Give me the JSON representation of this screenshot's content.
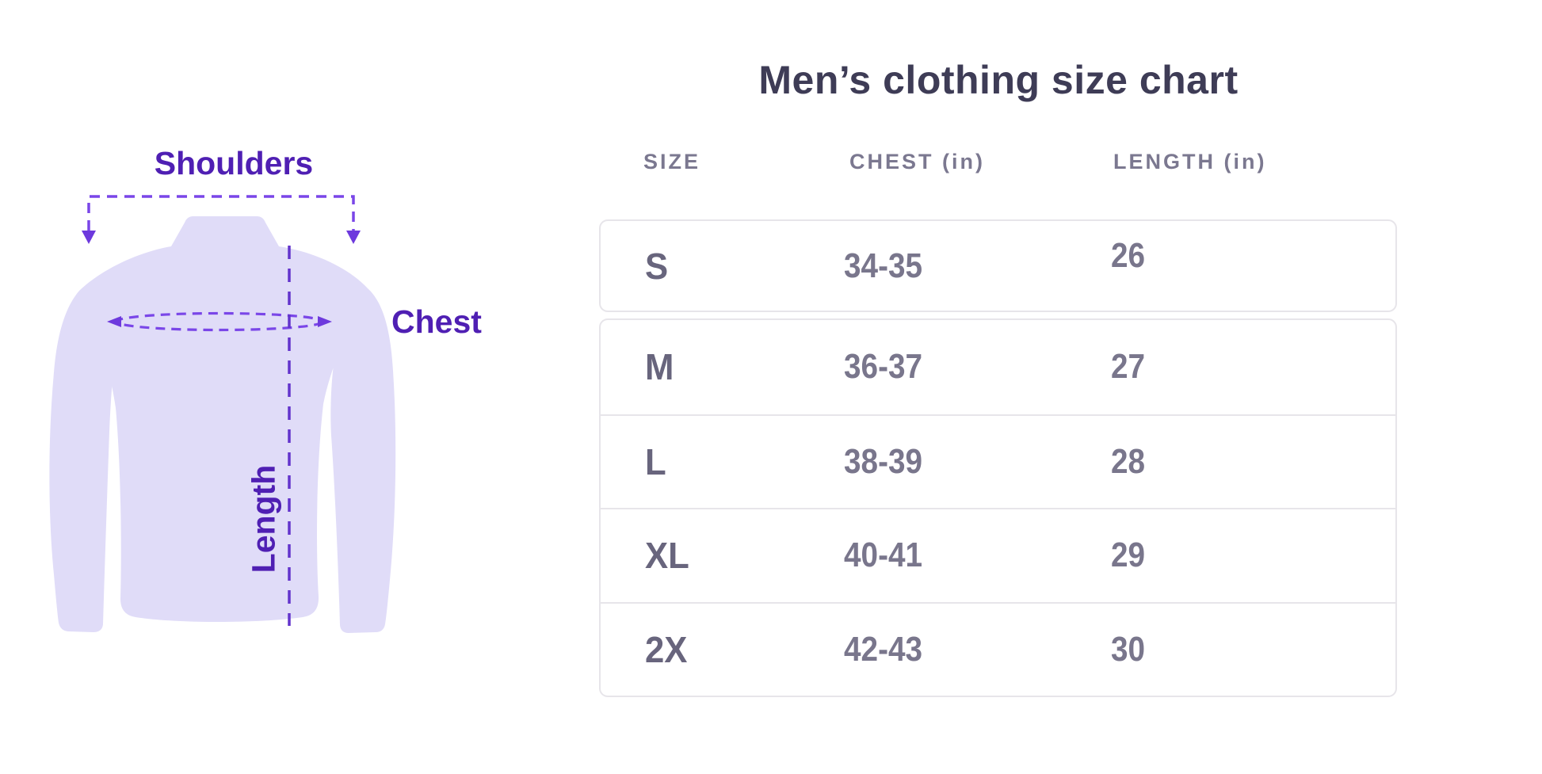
{
  "illustration": {
    "shoulders_label": "Shoulders",
    "chest_label": "Chest",
    "length_label": "Length",
    "colors": {
      "shirt_fill": "#e0dcf8",
      "label_purple": "#4f1fb3",
      "dash_purple": "#7a46e8",
      "arrow_purple": "#6d39dd",
      "length_line_purple": "#6233cc"
    }
  },
  "table": {
    "title": "Men’s clothing size chart",
    "columns": [
      "SIZE",
      "CHEST (in)",
      "LENGTH (in)"
    ],
    "rows": [
      {
        "size": "S",
        "chest": "34-35",
        "length": "26"
      },
      {
        "size": "M",
        "chest": "36-37",
        "length": "27"
      },
      {
        "size": "L",
        "chest": "38-39",
        "length": "28"
      },
      {
        "size": "XL",
        "chest": "40-41",
        "length": "29"
      },
      {
        "size": "2X",
        "chest": "42-43",
        "length": "30"
      }
    ]
  },
  "chart_data": {
    "type": "table",
    "title": "Men’s clothing size chart",
    "columns": [
      "SIZE",
      "CHEST (in)",
      "LENGTH (in)"
    ],
    "rows": [
      [
        "S",
        "34-35",
        "26"
      ],
      [
        "M",
        "36-37",
        "27"
      ],
      [
        "L",
        "38-39",
        "28"
      ],
      [
        "XL",
        "40-41",
        "29"
      ],
      [
        "2X",
        "42-43",
        "30"
      ]
    ],
    "annotations": [
      "Shoulders",
      "Chest",
      "Length"
    ]
  }
}
